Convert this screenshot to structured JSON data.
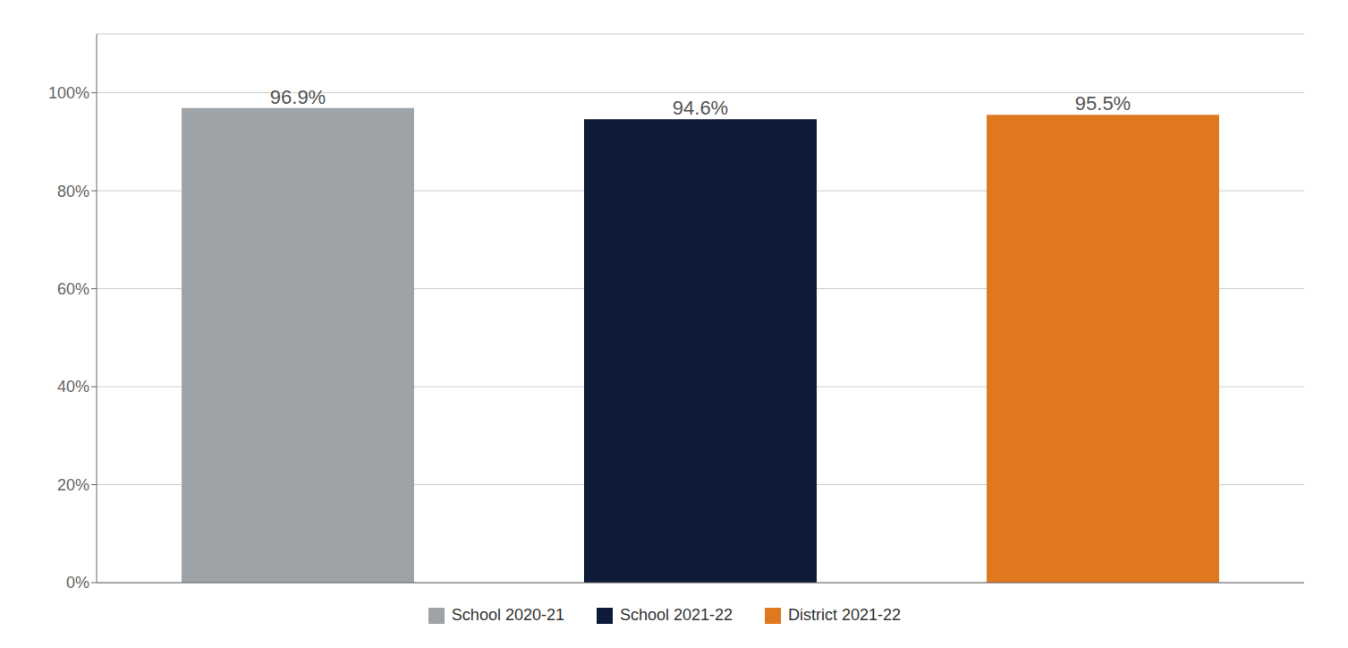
{
  "chart_data": {
    "type": "bar",
    "categories": [
      "School 2020-21",
      "School 2021-22",
      "District 2021-22"
    ],
    "values": [
      0.969,
      0.946,
      0.955
    ],
    "value_labels": [
      "96.9%",
      "94.6%",
      "95.5%"
    ],
    "data_labels": true,
    "colors": [
      "#9EA3A8",
      "#0D1B38",
      "#E07820"
    ],
    "ylim": [
      0,
      1.12
    ],
    "yticks": [
      {
        "value": 0.0,
        "label": "0%"
      },
      {
        "value": 0.2,
        "label": "20%"
      },
      {
        "value": 0.4,
        "label": "40%"
      },
      {
        "value": 0.6,
        "label": "60%"
      },
      {
        "value": 0.8,
        "label": "80%"
      },
      {
        "value": 1.0,
        "label": "100%"
      }
    ],
    "grid": true,
    "legend": "bottom",
    "tick_labels": "y"
  }
}
